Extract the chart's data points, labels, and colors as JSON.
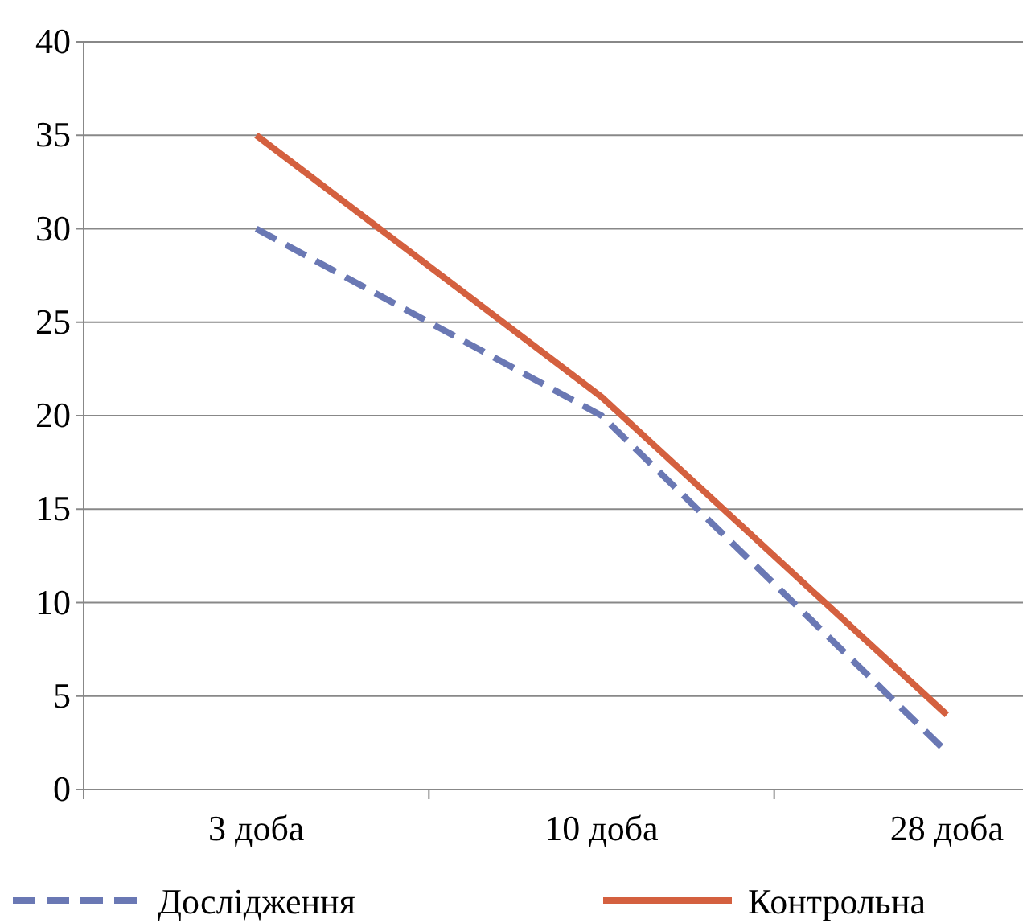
{
  "chart_data": {
    "type": "line",
    "categories": [
      "3 доба",
      "10 доба",
      "28 доба"
    ],
    "series": [
      {
        "name": "Дослідження",
        "color": "#6a78b4",
        "values": [
          30,
          20,
          2
        ],
        "line_style": "dashed"
      },
      {
        "name": "Контрольна",
        "color": "#d4603f",
        "values": [
          35,
          21,
          4
        ],
        "line_style": "solid"
      }
    ],
    "ylim": [
      0,
      40
    ],
    "yticks": [
      0,
      5,
      10,
      15,
      20,
      25,
      30,
      35,
      40
    ],
    "grid": "y",
    "legend": "bottom",
    "marker": "none"
  }
}
